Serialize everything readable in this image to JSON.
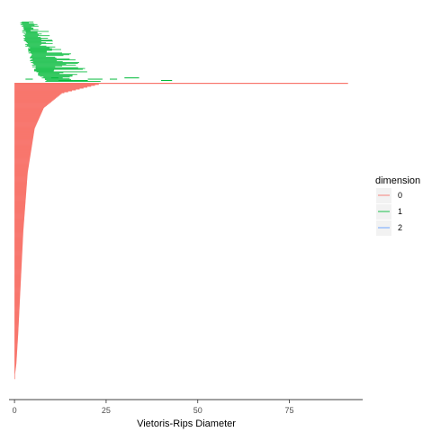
{
  "chart_data": {
    "type": "barcode",
    "xlabel": "Vietoris-Rips Diameter",
    "ylabel": "",
    "xlim": [
      -1.5,
      95
    ],
    "xticks": [
      0,
      25,
      50,
      75
    ],
    "x_tick_labels": [
      "0",
      "25",
      "50",
      "75"
    ],
    "grid": false,
    "legend": {
      "title": "dimension",
      "placement": "right",
      "entries": [
        {
          "label": "0",
          "color": "#F8766D"
        },
        {
          "label": "1",
          "color": "#00BA38"
        },
        {
          "label": "2",
          "color": "#619CFF"
        }
      ]
    },
    "series": [
      {
        "name": "0",
        "color": "#F8766D",
        "bar_count": 320,
        "infinite_bar": {
          "birth": 0,
          "death": 91
        },
        "death_profile": [
          {
            "rank": 0,
            "death": 23
          },
          {
            "rank": 0.03,
            "death": 13
          },
          {
            "rank": 0.08,
            "death": 8
          },
          {
            "rank": 0.15,
            "death": 5.5
          },
          {
            "rank": 0.3,
            "death": 3.6
          },
          {
            "rank": 0.5,
            "death": 2.4
          },
          {
            "rank": 0.7,
            "death": 1.6
          },
          {
            "rank": 0.85,
            "death": 1.0
          },
          {
            "rank": 0.95,
            "death": 0.5
          },
          {
            "rank": 1,
            "death": 0
          }
        ]
      },
      {
        "name": "1",
        "color": "#00BA38",
        "bar_count": 70,
        "bars": [
          {
            "birth": 12,
            "death": 16
          },
          {
            "birth": 3,
            "death": 5
          },
          {
            "birth": 10,
            "death": 12
          },
          {
            "birth": 16,
            "death": 20
          },
          {
            "birth": 20,
            "death": 24
          },
          {
            "birth": 30,
            "death": 34
          },
          {
            "birth": 40,
            "death": 43
          },
          {
            "birth": 26,
            "death": 28
          }
        ],
        "birth_profile": [
          {
            "rank": 0,
            "birth": 2
          },
          {
            "rank": 0.3,
            "birth": 3
          },
          {
            "rank": 0.6,
            "birth": 4.5
          },
          {
            "rank": 0.85,
            "birth": 6
          },
          {
            "rank": 1,
            "birth": 9
          }
        ],
        "length_profile": [
          {
            "rank": 0,
            "length": 3
          },
          {
            "rank": 0.5,
            "length": 7
          },
          {
            "rank": 1,
            "length": 12
          }
        ]
      },
      {
        "name": "2",
        "color": "#619CFF",
        "bars": []
      }
    ]
  }
}
